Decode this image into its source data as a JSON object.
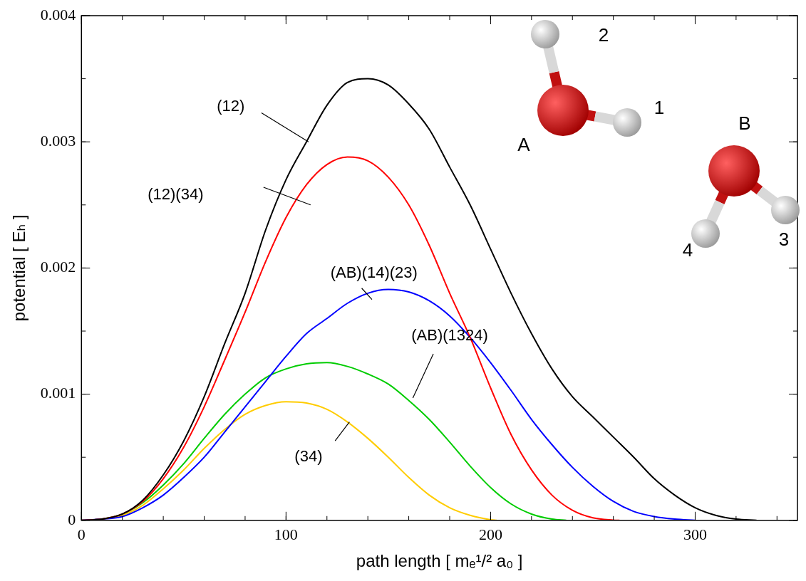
{
  "chart_data": {
    "type": "line",
    "x_label": "path length [ mₑ¹/² a₀ ]",
    "y_label": "potential [ Eₕ ]",
    "xlim": [
      0,
      350
    ],
    "ylim": [
      0,
      0.004
    ],
    "xticks": [
      0,
      100,
      200,
      300
    ],
    "yticks": [
      0,
      0.001,
      0.002,
      0.003,
      0.004
    ],
    "grid": false,
    "series": [
      {
        "name": "(12)",
        "color": "#000000",
        "x": [
          0,
          10,
          20,
          30,
          40,
          50,
          60,
          70,
          80,
          90,
          100,
          110,
          120,
          130,
          140,
          150,
          160,
          170,
          180,
          190,
          200,
          210,
          220,
          230,
          240,
          250,
          260,
          270,
          280,
          290,
          300,
          310,
          320,
          330
        ],
        "values": [
          0,
          1e-05,
          5e-05,
          0.00016,
          0.00036,
          0.00063,
          0.00098,
          0.0014,
          0.0018,
          0.0023,
          0.0027,
          0.003,
          0.00329,
          0.00347,
          0.0035,
          0.00345,
          0.0033,
          0.0031,
          0.0028,
          0.0025,
          0.00215,
          0.0018,
          0.00148,
          0.0012,
          0.00098,
          0.00082,
          0.00066,
          0.0005,
          0.00033,
          0.0002,
          0.0001,
          4e-05,
          1e-05,
          0
        ]
      },
      {
        "name": "(12)(34)",
        "color": "#ff0000",
        "x": [
          0,
          10,
          20,
          30,
          40,
          50,
          60,
          70,
          80,
          90,
          100,
          110,
          120,
          130,
          140,
          150,
          160,
          170,
          180,
          190,
          200,
          210,
          220,
          230,
          240,
          250,
          260,
          263
        ],
        "values": [
          0,
          1e-05,
          5e-05,
          0.00015,
          0.00033,
          0.00058,
          0.0009,
          0.00127,
          0.00165,
          0.00205,
          0.0024,
          0.00266,
          0.00282,
          0.00288,
          0.00285,
          0.00272,
          0.0025,
          0.00218,
          0.0018,
          0.00145,
          0.00105,
          0.00068,
          0.0004,
          0.0002,
          8e-05,
          2e-05,
          2e-06,
          0
        ]
      },
      {
        "name": "(AB)(14)(23)",
        "color": "#0000ff",
        "x": [
          0,
          10,
          20,
          30,
          40,
          50,
          60,
          70,
          80,
          90,
          100,
          110,
          120,
          130,
          140,
          150,
          160,
          170,
          180,
          190,
          200,
          210,
          220,
          230,
          240,
          250,
          260,
          270,
          280,
          290,
          300
        ],
        "values": [
          0,
          1e-05,
          3e-05,
          0.0001,
          0.0002,
          0.00034,
          0.0005,
          0.0007,
          0.0009,
          0.0011,
          0.0013,
          0.00148,
          0.0016,
          0.00172,
          0.0018,
          0.00183,
          0.00181,
          0.00174,
          0.00162,
          0.00145,
          0.00125,
          0.00103,
          0.0008,
          0.0006,
          0.00042,
          0.00027,
          0.00015,
          7e-05,
          3e-05,
          1e-05,
          0
        ]
      },
      {
        "name": "(AB)(1324)",
        "color": "#00cc00",
        "x": [
          0,
          10,
          20,
          30,
          40,
          50,
          60,
          70,
          80,
          90,
          100,
          110,
          120,
          130,
          140,
          150,
          160,
          170,
          180,
          190,
          200,
          210,
          220,
          230,
          237
        ],
        "values": [
          0,
          1e-05,
          5e-05,
          0.00014,
          0.00028,
          0.00045,
          0.00065,
          0.00084,
          0.001,
          0.00113,
          0.0012,
          0.00124,
          0.00125,
          0.00122,
          0.00116,
          0.00108,
          0.00095,
          0.0008,
          0.00062,
          0.00043,
          0.00026,
          0.00013,
          5e-05,
          1e-05,
          0
        ]
      },
      {
        "name": "(34)",
        "color": "#ffcc00",
        "x": [
          0,
          10,
          20,
          30,
          40,
          50,
          60,
          70,
          80,
          90,
          100,
          110,
          120,
          130,
          140,
          150,
          160,
          170,
          180,
          190,
          200,
          203
        ],
        "values": [
          0,
          1e-05,
          4e-05,
          0.00012,
          0.00025,
          0.0004,
          0.00057,
          0.00072,
          0.00084,
          0.00091,
          0.00094,
          0.00093,
          0.00088,
          0.00078,
          0.00065,
          0.0005,
          0.00034,
          0.0002,
          0.0001,
          4e-05,
          5e-06,
          0
        ]
      }
    ],
    "annotations": [
      "A",
      "B",
      "1",
      "2",
      "3",
      "4"
    ]
  }
}
